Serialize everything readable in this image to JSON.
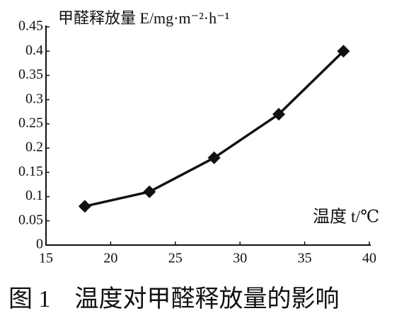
{
  "chart_data": {
    "type": "line",
    "y_label": "甲醛释放量 E/mg·m⁻²·h⁻¹",
    "x_label": "温度 t/℃",
    "caption": "图 1　温度对甲醛释放量的影响",
    "x": [
      18,
      23,
      28,
      33,
      38
    ],
    "values": [
      0.08,
      0.11,
      0.18,
      0.27,
      0.4
    ],
    "color": "#111111",
    "xlim": [
      15,
      40
    ],
    "xticks": [
      15,
      20,
      25,
      30,
      35,
      40
    ],
    "ylim": [
      0,
      0.45
    ],
    "yticks": [
      0,
      0.05,
      0.1,
      0.15,
      0.2,
      0.25,
      0.3,
      0.35,
      0.4,
      0.45
    ],
    "grid": false
  }
}
